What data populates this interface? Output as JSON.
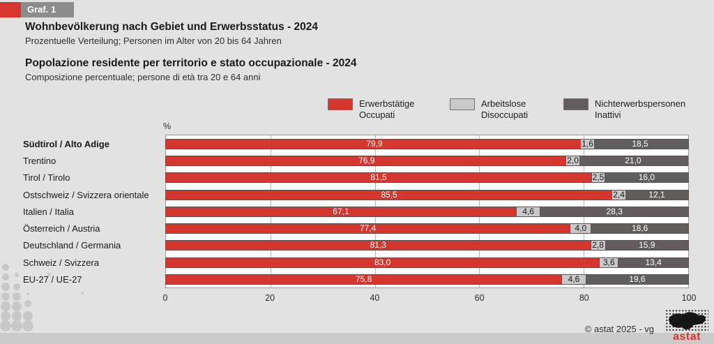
{
  "badge": {
    "label": "Graf. 1"
  },
  "header": {
    "title_de": "Wohnbevölkerung nach Gebiet und Erwerbsstatus - 2024",
    "subtitle_de": "Prozentuelle Verteilung; Personen im Alter von 20 bis 64 Jahren",
    "title_it": "Popolazione residente per territorio e stato occupazionale - 2024",
    "subtitle_it": "Composizione percentuale; persone di età tra 20 e 64 anni"
  },
  "legend": {
    "items": [
      {
        "label_de": "Erwerbstätige",
        "label_it": "Occupati",
        "color": "#d5362e"
      },
      {
        "label_de": "Arbeitslose",
        "label_it": "Disoccupati",
        "color": "#c9c9c9"
      },
      {
        "label_de": "Nichterwerbspersonen",
        "label_it": "Inattivi",
        "color": "#615d5d"
      }
    ]
  },
  "chart_data": {
    "type": "bar",
    "orientation": "horizontal-stacked",
    "title": "Wohnbevölkerung nach Gebiet und Erwerbsstatus - 2024 / Popolazione residente per territorio e stato occupazionale - 2024",
    "unit_label": "%",
    "categories": [
      "Südtirol / Alto Adige",
      "Trentino",
      "Tirol / Tirolo",
      "Ostschweiz / Svizzera orientale",
      "Italien / Italia",
      "Österreich / Austria",
      "Deutschland / Germania",
      "Schweiz / Svizzera",
      "EU-27 / UE-27"
    ],
    "bold_category_index": 0,
    "series": [
      {
        "name": "Erwerbstätige / Occupati",
        "color": "#d5362e",
        "text_color": "#ffffff",
        "values": [
          79.9,
          76.9,
          81.5,
          85.5,
          67.1,
          77.4,
          81.3,
          83.0,
          75.8
        ]
      },
      {
        "name": "Arbeitslose / Disoccupati",
        "color": "#c9c9c9",
        "text_color": "#1a1a1a",
        "values": [
          1.6,
          2.0,
          2.5,
          2.4,
          4.6,
          4.0,
          2.8,
          3.6,
          4.6
        ]
      },
      {
        "name": "Nichterwerbspersonen / Inattivi",
        "color": "#615d5d",
        "text_color": "#ffffff",
        "values": [
          18.5,
          21.0,
          16.0,
          12.1,
          28.3,
          18.6,
          15.9,
          13.4,
          19.6
        ]
      }
    ],
    "xticks": [
      0,
      20,
      40,
      60,
      80,
      100
    ],
    "xlim": [
      0,
      100
    ],
    "grid": true,
    "legend_position": "top",
    "decimal_separator": ","
  },
  "footer": {
    "copyright": "© astat 2025 - vg",
    "logo_text": "astat"
  }
}
